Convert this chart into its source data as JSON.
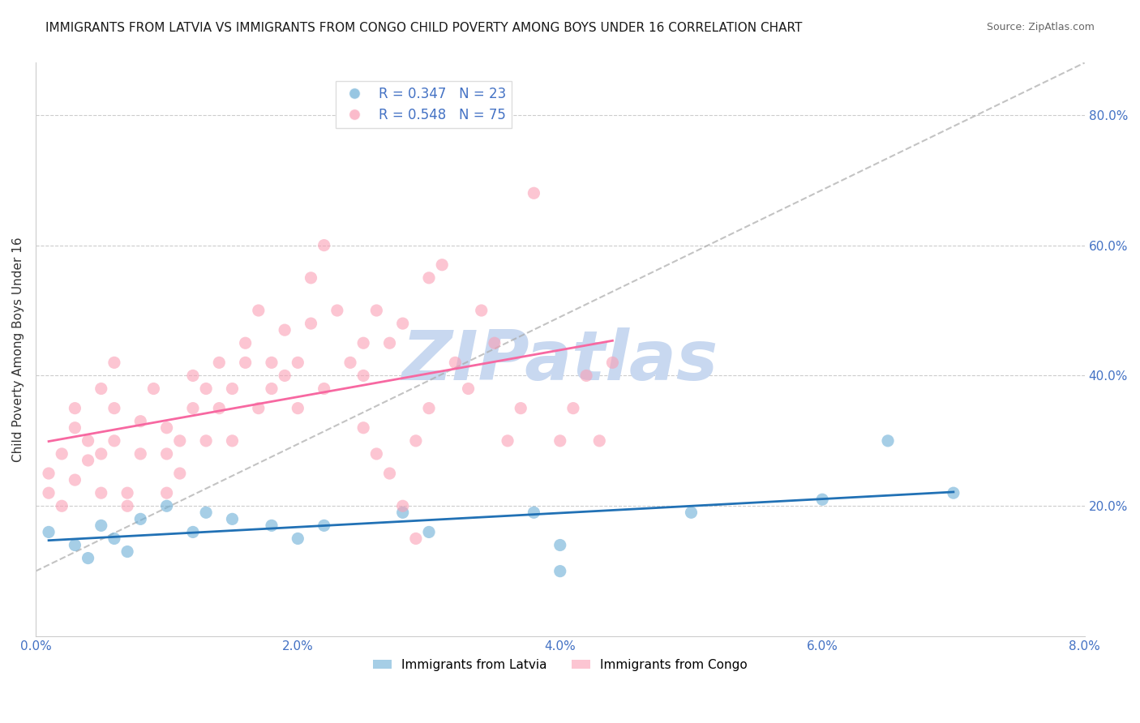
{
  "title": "IMMIGRANTS FROM LATVIA VS IMMIGRANTS FROM CONGO CHILD POVERTY AMONG BOYS UNDER 16 CORRELATION CHART",
  "source": "Source: ZipAtlas.com",
  "xlabel_latvia": "Immigrants from Latvia",
  "xlabel_congo": "Immigrants from Congo",
  "ylabel": "Child Poverty Among Boys Under 16",
  "xlim": [
    0.0,
    0.08
  ],
  "ylim": [
    0.0,
    0.88
  ],
  "right_yticks": [
    0.2,
    0.4,
    0.6,
    0.8
  ],
  "right_yticklabels": [
    "20.0%",
    "40.0%",
    "60.0%",
    "80.0%"
  ],
  "xticks": [
    0.0,
    0.02,
    0.04,
    0.06,
    0.08
  ],
  "xticklabels": [
    "0.0%",
    "2.0%",
    "4.0%",
    "6.0%",
    "8.0%"
  ],
  "legend_r_latvia": "R = 0.347",
  "legend_n_latvia": "N = 23",
  "legend_r_congo": "R = 0.548",
  "legend_n_congo": "N = 75",
  "color_latvia": "#6baed6",
  "color_congo": "#fa9fb5",
  "color_latvia_line": "#2171b5",
  "color_congo_line": "#f768a1",
  "color_ref_line": "#aaaaaa",
  "color_title": "#1a1a1a",
  "color_right_axis": "#4472c4",
  "color_watermark": "#c8d8f0",
  "watermark_text": "ZIPatlas",
  "latvia_x": [
    0.001,
    0.003,
    0.004,
    0.005,
    0.006,
    0.007,
    0.008,
    0.01,
    0.012,
    0.013,
    0.015,
    0.018,
    0.02,
    0.022,
    0.028,
    0.03,
    0.038,
    0.04,
    0.05,
    0.06,
    0.065,
    0.07,
    0.04
  ],
  "latvia_y": [
    0.16,
    0.14,
    0.12,
    0.17,
    0.15,
    0.13,
    0.18,
    0.2,
    0.16,
    0.19,
    0.18,
    0.17,
    0.15,
    0.17,
    0.19,
    0.16,
    0.19,
    0.14,
    0.19,
    0.21,
    0.3,
    0.22,
    0.1
  ],
  "congo_x": [
    0.001,
    0.001,
    0.002,
    0.002,
    0.003,
    0.003,
    0.003,
    0.004,
    0.004,
    0.005,
    0.005,
    0.005,
    0.006,
    0.006,
    0.006,
    0.007,
    0.007,
    0.008,
    0.008,
    0.009,
    0.01,
    0.01,
    0.01,
    0.011,
    0.011,
    0.012,
    0.012,
    0.013,
    0.013,
    0.014,
    0.014,
    0.015,
    0.015,
    0.016,
    0.016,
    0.017,
    0.017,
    0.018,
    0.018,
    0.019,
    0.019,
    0.02,
    0.02,
    0.021,
    0.021,
    0.022,
    0.022,
    0.023,
    0.024,
    0.025,
    0.025,
    0.026,
    0.027,
    0.028,
    0.029,
    0.03,
    0.03,
    0.031,
    0.032,
    0.033,
    0.034,
    0.035,
    0.036,
    0.037,
    0.038,
    0.04,
    0.041,
    0.042,
    0.043,
    0.044,
    0.025,
    0.026,
    0.027,
    0.028,
    0.029
  ],
  "congo_y": [
    0.22,
    0.25,
    0.2,
    0.28,
    0.32,
    0.35,
    0.24,
    0.3,
    0.27,
    0.22,
    0.38,
    0.28,
    0.3,
    0.35,
    0.42,
    0.2,
    0.22,
    0.28,
    0.33,
    0.38,
    0.22,
    0.28,
    0.32,
    0.25,
    0.3,
    0.35,
    0.4,
    0.38,
    0.3,
    0.42,
    0.35,
    0.3,
    0.38,
    0.42,
    0.45,
    0.35,
    0.5,
    0.42,
    0.38,
    0.47,
    0.4,
    0.35,
    0.42,
    0.55,
    0.48,
    0.38,
    0.6,
    0.5,
    0.42,
    0.45,
    0.4,
    0.5,
    0.45,
    0.48,
    0.3,
    0.55,
    0.35,
    0.57,
    0.42,
    0.38,
    0.5,
    0.45,
    0.3,
    0.35,
    0.68,
    0.3,
    0.35,
    0.4,
    0.3,
    0.42,
    0.32,
    0.28,
    0.25,
    0.2,
    0.15
  ]
}
